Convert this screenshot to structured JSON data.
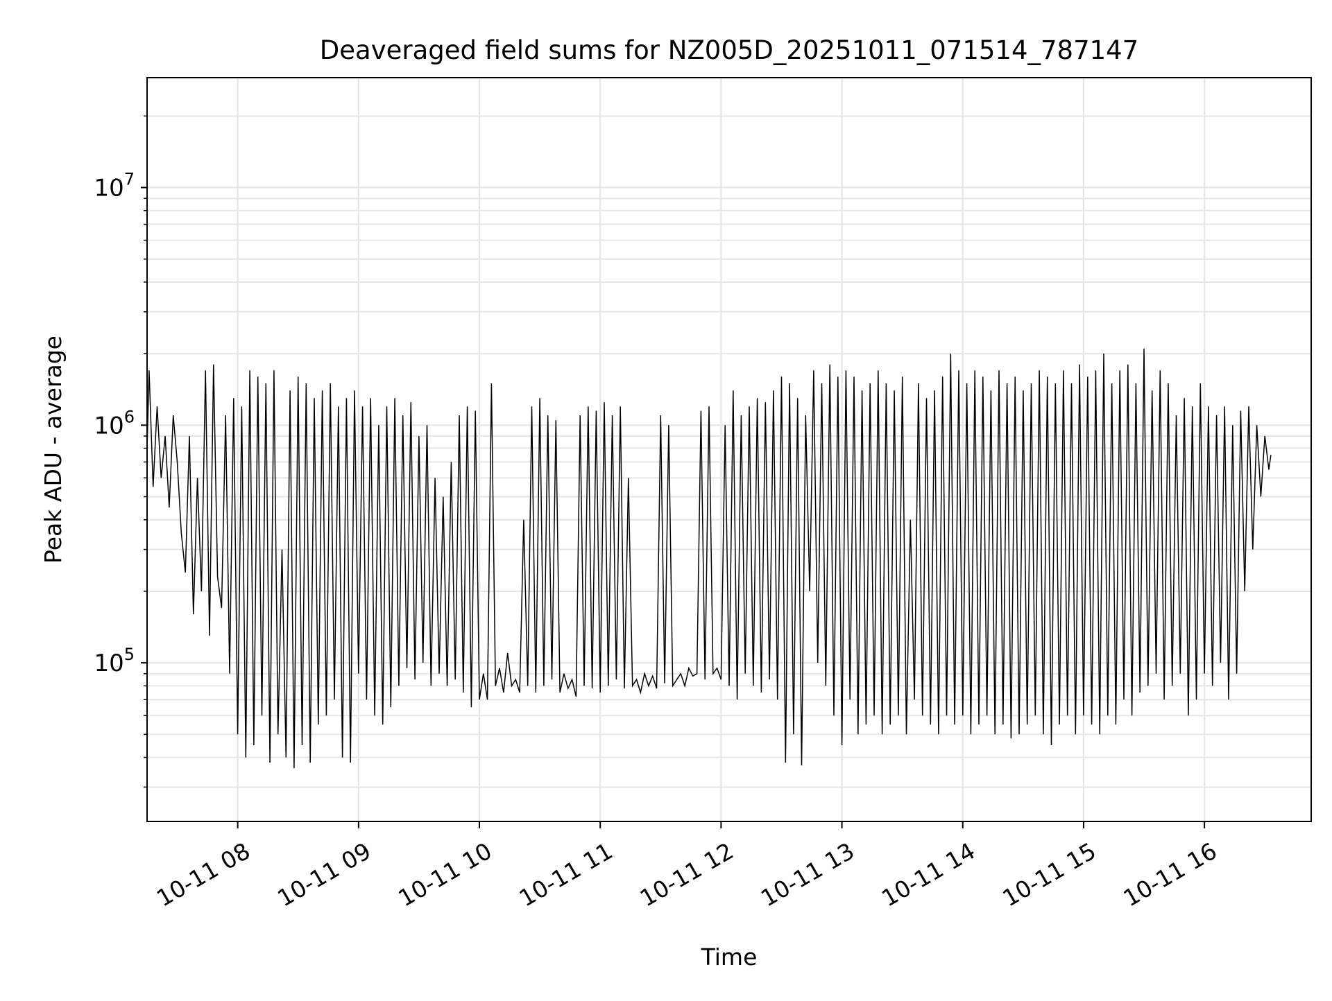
{
  "chart_data": {
    "type": "line",
    "title": "Deaveraged field sums for NZ005D_20251011_071514_787147",
    "xlabel": "Time",
    "ylabel": "Peak ADU - average",
    "x_scale": "time",
    "y_scale": "log",
    "xlim": [
      "2025-10-11 07:15",
      "2025-10-11 16:53"
    ],
    "ylim": [
      21500,
      29000000
    ],
    "x_ticks": [
      {
        "t": "2025-10-11 08:00",
        "label": "10-11 08"
      },
      {
        "t": "2025-10-11 09:00",
        "label": "10-11 09"
      },
      {
        "t": "2025-10-11 10:00",
        "label": "10-11 10"
      },
      {
        "t": "2025-10-11 11:00",
        "label": "10-11 11"
      },
      {
        "t": "2025-10-11 12:00",
        "label": "10-11 12"
      },
      {
        "t": "2025-10-11 13:00",
        "label": "10-11 13"
      },
      {
        "t": "2025-10-11 14:00",
        "label": "10-11 14"
      },
      {
        "t": "2025-10-11 15:00",
        "label": "10-11 15"
      },
      {
        "t": "2025-10-11 16:00",
        "label": "10-11 16"
      }
    ],
    "y_ticks": [
      {
        "value": 100000,
        "base": "10",
        "exp": "5"
      },
      {
        "value": 1000000,
        "base": "10",
        "exp": "6"
      },
      {
        "value": 10000000,
        "base": "10",
        "exp": "7"
      }
    ],
    "grid": true,
    "line_color": "#000000",
    "grid_color": "#e6e6e6",
    "series": [
      {
        "name": "",
        "points": [
          [
            "07:15",
            800000
          ],
          [
            "07:16",
            1700000
          ],
          [
            "07:18",
            550000
          ],
          [
            "07:20",
            1200000
          ],
          [
            "07:22",
            600000
          ],
          [
            "07:24",
            900000
          ],
          [
            "07:26",
            450000
          ],
          [
            "07:28",
            1100000
          ],
          [
            "07:30",
            700000
          ],
          [
            "07:32",
            350000
          ],
          [
            "07:34",
            240000
          ],
          [
            "07:36",
            900000
          ],
          [
            "07:38",
            160000
          ],
          [
            "07:40",
            600000
          ],
          [
            "07:42",
            200000
          ],
          [
            "07:44",
            1700000
          ],
          [
            "07:46",
            130000
          ],
          [
            "07:48",
            1800000
          ],
          [
            "07:50",
            230000
          ],
          [
            "07:52",
            170000
          ],
          [
            "07:54",
            1100000
          ],
          [
            "07:56",
            90000
          ],
          [
            "07:58",
            1300000
          ],
          [
            "08:00",
            50000
          ],
          [
            "08:02",
            1200000
          ],
          [
            "08:04",
            40000
          ],
          [
            "08:06",
            1700000
          ],
          [
            "08:08",
            45000
          ],
          [
            "08:10",
            1600000
          ],
          [
            "08:12",
            60000
          ],
          [
            "08:14",
            1500000
          ],
          [
            "08:16",
            38000
          ],
          [
            "08:18",
            1700000
          ],
          [
            "08:20",
            50000
          ],
          [
            "08:22",
            300000
          ],
          [
            "08:24",
            40000
          ],
          [
            "08:26",
            1400000
          ],
          [
            "08:28",
            36000
          ],
          [
            "08:30",
            1600000
          ],
          [
            "08:32",
            45000
          ],
          [
            "08:34",
            1500000
          ],
          [
            "08:36",
            38000
          ],
          [
            "08:38",
            1300000
          ],
          [
            "08:40",
            55000
          ],
          [
            "08:42",
            1400000
          ],
          [
            "08:44",
            60000
          ],
          [
            "08:46",
            1500000
          ],
          [
            "08:48",
            70000
          ],
          [
            "08:50",
            1200000
          ],
          [
            "08:52",
            40000
          ],
          [
            "08:54",
            1300000
          ],
          [
            "08:56",
            38000
          ],
          [
            "08:58",
            1400000
          ],
          [
            "09:00",
            90000
          ],
          [
            "09:02",
            1200000
          ],
          [
            "09:04",
            70000
          ],
          [
            "09:06",
            1300000
          ],
          [
            "09:08",
            60000
          ],
          [
            "09:10",
            1000000
          ],
          [
            "09:12",
            55000
          ],
          [
            "09:14",
            1200000
          ],
          [
            "09:16",
            65000
          ],
          [
            "09:18",
            1300000
          ],
          [
            "09:20",
            80000
          ],
          [
            "09:22",
            1100000
          ],
          [
            "09:24",
            95000
          ],
          [
            "09:26",
            1250000
          ],
          [
            "09:28",
            85000
          ],
          [
            "09:30",
            900000
          ],
          [
            "09:32",
            100000
          ],
          [
            "09:34",
            1000000
          ],
          [
            "09:36",
            80000
          ],
          [
            "09:38",
            600000
          ],
          [
            "09:40",
            90000
          ],
          [
            "09:42",
            500000
          ],
          [
            "09:44",
            80000
          ],
          [
            "09:46",
            700000
          ],
          [
            "09:48",
            85000
          ],
          [
            "09:50",
            1100000
          ],
          [
            "09:52",
            75000
          ],
          [
            "09:54",
            1200000
          ],
          [
            "09:56",
            65000
          ],
          [
            "09:58",
            1150000
          ],
          [
            "10:00",
            70000
          ],
          [
            "10:02",
            90000
          ],
          [
            "10:04",
            70000
          ],
          [
            "10:06",
            1500000
          ],
          [
            "10:08",
            80000
          ],
          [
            "10:10",
            95000
          ],
          [
            "10:12",
            75000
          ],
          [
            "10:14",
            110000
          ],
          [
            "10:16",
            80000
          ],
          [
            "10:18",
            85000
          ],
          [
            "10:20",
            75000
          ],
          [
            "10:22",
            400000
          ],
          [
            "10:24",
            80000
          ],
          [
            "10:26",
            1200000
          ],
          [
            "10:28",
            75000
          ],
          [
            "10:30",
            1300000
          ],
          [
            "10:32",
            80000
          ],
          [
            "10:34",
            1100000
          ],
          [
            "10:36",
            85000
          ],
          [
            "10:38",
            1050000
          ],
          [
            "10:40",
            75000
          ],
          [
            "10:42",
            90000
          ],
          [
            "10:44",
            78000
          ],
          [
            "10:46",
            85000
          ],
          [
            "10:48",
            72000
          ],
          [
            "10:50",
            1100000
          ],
          [
            "10:52",
            80000
          ],
          [
            "10:54",
            1200000
          ],
          [
            "10:56",
            78000
          ],
          [
            "10:58",
            1150000
          ],
          [
            "11:00",
            75000
          ],
          [
            "11:02",
            1250000
          ],
          [
            "11:04",
            80000
          ],
          [
            "11:06",
            1100000
          ],
          [
            "11:08",
            85000
          ],
          [
            "11:10",
            1200000
          ],
          [
            "11:12",
            78000
          ],
          [
            "11:14",
            600000
          ],
          [
            "11:16",
            80000
          ],
          [
            "11:18",
            85000
          ],
          [
            "11:20",
            75000
          ],
          [
            "11:22",
            90000
          ],
          [
            "11:24",
            80000
          ],
          [
            "11:26",
            88000
          ],
          [
            "11:28",
            78000
          ],
          [
            "11:30",
            1100000
          ],
          [
            "11:32",
            82000
          ],
          [
            "11:34",
            1000000
          ],
          [
            "11:36",
            80000
          ],
          [
            "11:38",
            85000
          ],
          [
            "11:40",
            90000
          ],
          [
            "11:42",
            80000
          ],
          [
            "11:44",
            95000
          ],
          [
            "11:46",
            88000
          ],
          [
            "11:48",
            90000
          ],
          [
            "11:50",
            1150000
          ],
          [
            "11:52",
            85000
          ],
          [
            "11:54",
            1200000
          ],
          [
            "11:56",
            90000
          ],
          [
            "11:58",
            95000
          ],
          [
            "12:00",
            85000
          ],
          [
            "12:02",
            1000000
          ],
          [
            "12:04",
            80000
          ],
          [
            "12:06",
            1400000
          ],
          [
            "12:08",
            70000
          ],
          [
            "12:10",
            1100000
          ],
          [
            "12:12",
            90000
          ],
          [
            "12:14",
            1200000
          ],
          [
            "12:16",
            80000
          ],
          [
            "12:18",
            1300000
          ],
          [
            "12:20",
            75000
          ],
          [
            "12:22",
            1250000
          ],
          [
            "12:24",
            85000
          ],
          [
            "12:26",
            1400000
          ],
          [
            "12:28",
            70000
          ],
          [
            "12:30",
            1600000
          ],
          [
            "12:32",
            38000
          ],
          [
            "12:34",
            1500000
          ],
          [
            "12:36",
            50000
          ],
          [
            "12:38",
            1300000
          ],
          [
            "12:40",
            37000
          ],
          [
            "12:42",
            1100000
          ],
          [
            "12:44",
            200000
          ],
          [
            "12:46",
            1700000
          ],
          [
            "12:48",
            100000
          ],
          [
            "12:50",
            1500000
          ],
          [
            "12:52",
            80000
          ],
          [
            "12:54",
            1800000
          ],
          [
            "12:56",
            60000
          ],
          [
            "12:58",
            1600000
          ],
          [
            "13:00",
            45000
          ],
          [
            "13:02",
            1700000
          ],
          [
            "13:04",
            70000
          ],
          [
            "13:06",
            1600000
          ],
          [
            "13:08",
            50000
          ],
          [
            "13:10",
            1400000
          ],
          [
            "13:12",
            55000
          ],
          [
            "13:14",
            1500000
          ],
          [
            "13:16",
            60000
          ],
          [
            "13:18",
            1700000
          ],
          [
            "13:20",
            50000
          ],
          [
            "13:22",
            1500000
          ],
          [
            "13:24",
            55000
          ],
          [
            "13:26",
            1400000
          ],
          [
            "13:28",
            60000
          ],
          [
            "13:30",
            1600000
          ],
          [
            "13:32",
            50000
          ],
          [
            "13:34",
            400000
          ],
          [
            "13:36",
            70000
          ],
          [
            "13:38",
            1500000
          ],
          [
            "13:40",
            60000
          ],
          [
            "13:42",
            1300000
          ],
          [
            "13:44",
            55000
          ],
          [
            "13:46",
            1400000
          ],
          [
            "13:48",
            50000
          ],
          [
            "13:50",
            1600000
          ],
          [
            "13:52",
            60000
          ],
          [
            "13:54",
            2000000
          ],
          [
            "13:56",
            55000
          ],
          [
            "13:58",
            1700000
          ],
          [
            "14:00",
            60000
          ],
          [
            "14:02",
            1500000
          ],
          [
            "14:04",
            50000
          ],
          [
            "14:06",
            1700000
          ],
          [
            "14:08",
            55000
          ],
          [
            "14:10",
            1600000
          ],
          [
            "14:12",
            60000
          ],
          [
            "14:14",
            1400000
          ],
          [
            "14:16",
            50000
          ],
          [
            "14:18",
            1700000
          ],
          [
            "14:20",
            55000
          ],
          [
            "14:22",
            1500000
          ],
          [
            "14:24",
            48000
          ],
          [
            "14:26",
            1600000
          ],
          [
            "14:28",
            50000
          ],
          [
            "14:30",
            1400000
          ],
          [
            "14:32",
            55000
          ],
          [
            "14:34",
            1500000
          ],
          [
            "14:36",
            60000
          ],
          [
            "14:38",
            1700000
          ],
          [
            "14:40",
            50000
          ],
          [
            "14:42",
            1600000
          ],
          [
            "14:44",
            45000
          ],
          [
            "14:46",
            1500000
          ],
          [
            "14:48",
            55000
          ],
          [
            "14:50",
            1700000
          ],
          [
            "14:52",
            60000
          ],
          [
            "14:54",
            1500000
          ],
          [
            "14:56",
            50000
          ],
          [
            "14:58",
            1800000
          ],
          [
            "15:00",
            60000
          ],
          [
            "15:02",
            1600000
          ],
          [
            "15:04",
            55000
          ],
          [
            "15:06",
            1700000
          ],
          [
            "15:08",
            50000
          ],
          [
            "15:10",
            2000000
          ],
          [
            "15:12",
            60000
          ],
          [
            "15:14",
            1500000
          ],
          [
            "15:16",
            55000
          ],
          [
            "15:18",
            1700000
          ],
          [
            "15:20",
            70000
          ],
          [
            "15:22",
            1800000
          ],
          [
            "15:24",
            60000
          ],
          [
            "15:26",
            1500000
          ],
          [
            "15:28",
            75000
          ],
          [
            "15:30",
            2100000
          ],
          [
            "15:32",
            80000
          ],
          [
            "15:34",
            1400000
          ],
          [
            "15:36",
            90000
          ],
          [
            "15:38",
            1700000
          ],
          [
            "15:40",
            70000
          ],
          [
            "15:42",
            1500000
          ],
          [
            "15:44",
            80000
          ],
          [
            "15:46",
            1100000
          ],
          [
            "15:48",
            90000
          ],
          [
            "15:50",
            1300000
          ],
          [
            "15:52",
            60000
          ],
          [
            "15:54",
            1200000
          ],
          [
            "15:56",
            70000
          ],
          [
            "15:58",
            1500000
          ],
          [
            "16:00",
            90000
          ],
          [
            "16:02",
            1200000
          ],
          [
            "16:04",
            80000
          ],
          [
            "16:06",
            1100000
          ],
          [
            "16:08",
            100000
          ],
          [
            "16:10",
            1200000
          ],
          [
            "16:12",
            70000
          ],
          [
            "16:14",
            1000000
          ],
          [
            "16:16",
            90000
          ],
          [
            "16:18",
            1150000
          ],
          [
            "16:20",
            200000
          ],
          [
            "16:22",
            1200000
          ],
          [
            "16:24",
            300000
          ],
          [
            "16:26",
            1000000
          ],
          [
            "16:28",
            500000
          ],
          [
            "16:30",
            900000
          ],
          [
            "16:32",
            650000
          ],
          [
            "16:33",
            750000
          ]
        ]
      }
    ]
  }
}
